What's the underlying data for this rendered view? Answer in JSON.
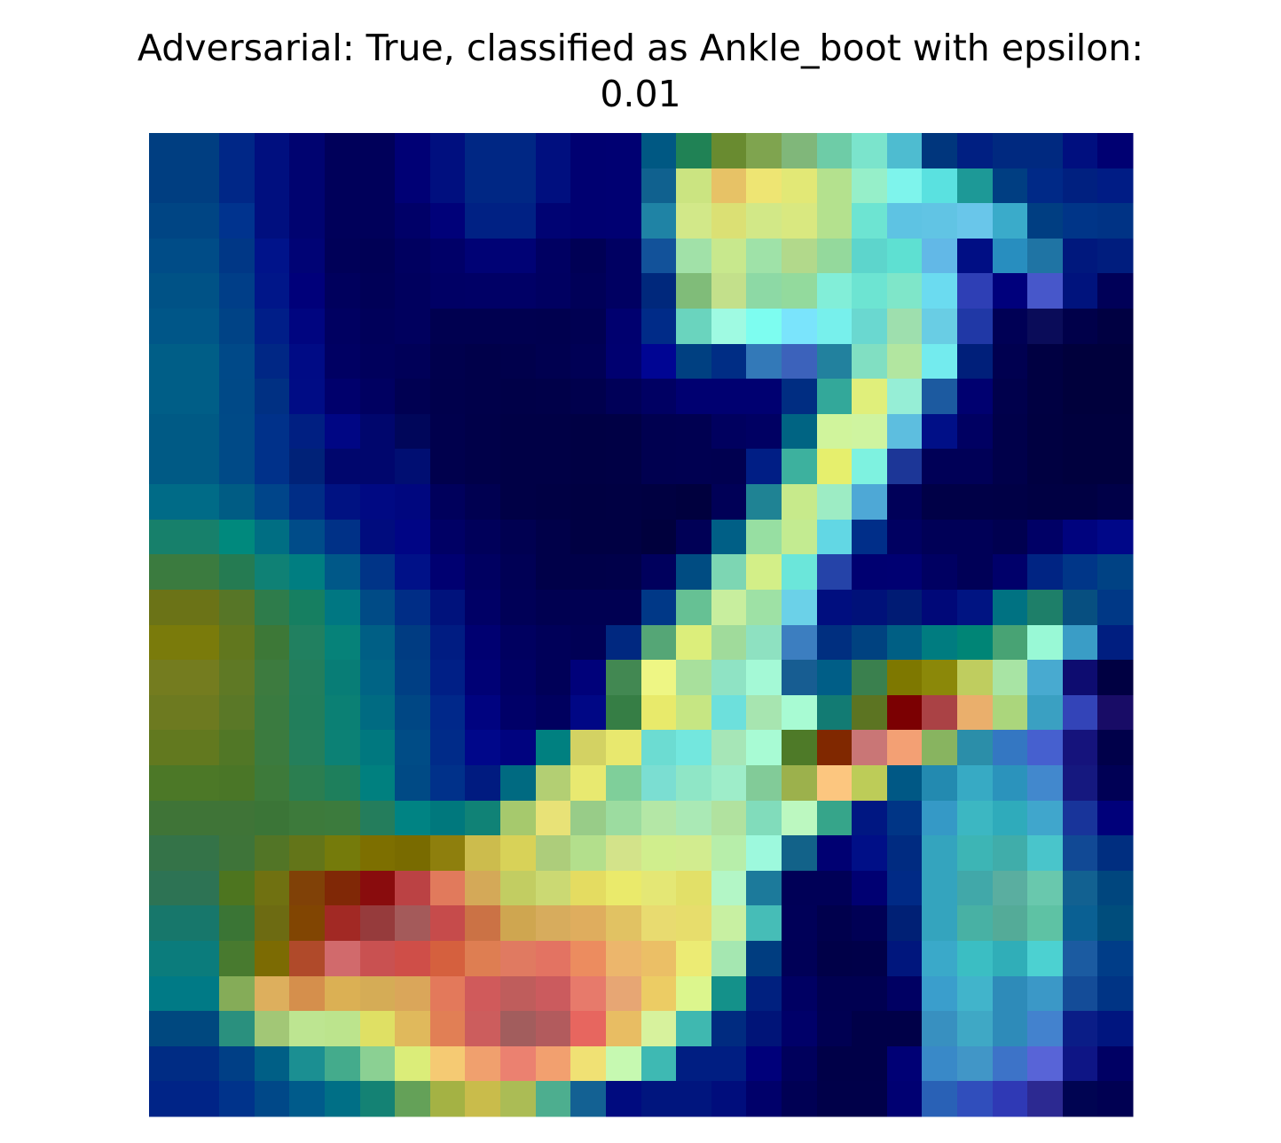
{
  "chart_data": {
    "type": "heatmap",
    "title": "Adversarial: True, classified as Ankle_boot with epsilon:\n0.01",
    "axes": "off",
    "grid": false,
    "rows": 28,
    "cols": 28,
    "cells": [
      [
        "#003e81",
        "#003e81",
        "#002787",
        "#000f7f",
        "#000370",
        "#00005a",
        "#00005a",
        "#000075",
        "#000f7f",
        "#002784",
        "#002784",
        "#000f7f",
        "#000071",
        "#000072",
        "#005883",
        "#208255",
        "#698b30",
        "#7fa44f",
        "#80b77a",
        "#6ecca7",
        "#7be4cc",
        "#4ebcd0",
        "#00367d",
        "#001f82",
        "#002980",
        "#002980",
        "#000f7f",
        "#000072"
      ],
      [
        "#003e81",
        "#003e81",
        "#002787",
        "#000f7f",
        "#000370",
        "#00005a",
        "#00005a",
        "#000075",
        "#000f7f",
        "#002784",
        "#002784",
        "#000f7f",
        "#000071",
        "#000072",
        "#10618f",
        "#cbe481",
        "#e7c266",
        "#eee573",
        "#e2e876",
        "#b4e18e",
        "#96efc9",
        "#7ef4ec",
        "#5ae1e0",
        "#1d9997",
        "#003e82",
        "#002987",
        "#002080",
        "#001c85"
      ],
      [
        "#004584",
        "#004584",
        "#00338e",
        "#000f7f",
        "#000370",
        "#00005a",
        "#00005a",
        "#000068",
        "#000179",
        "#002184",
        "#002184",
        "#000373",
        "#000071",
        "#000072",
        "#1f83a5",
        "#d2e889",
        "#dbe074",
        "#d2e887",
        "#d9e880",
        "#b4e18e",
        "#6de4d2",
        "#5ec3e3",
        "#61c4e4",
        "#69c6ea",
        "#3aabca",
        "#003e82",
        "#003588",
        "#003385"
      ],
      [
        "#004c87",
        "#004c87",
        "#003786",
        "#00138a",
        "#000375",
        "#000058",
        "#000055",
        "#000060",
        "#000068",
        "#000275",
        "#000275",
        "#000062",
        "#000055",
        "#000062",
        "#12529a",
        "#a1e1a8",
        "#c8e88d",
        "#9fe2a8",
        "#b2d98b",
        "#94d99c",
        "#5dd5cc",
        "#5ee0d2",
        "#62b8e7",
        "#000e84",
        "#288ebf",
        "#1f74a4",
        "#00187d",
        "#001d7e"
      ],
      [
        "#005286",
        "#005286",
        "#003e88",
        "#001689",
        "#00007a",
        "#00005d",
        "#000057",
        "#00005e",
        "#000065",
        "#000066",
        "#000066",
        "#000061",
        "#000058",
        "#000062",
        "#00287c",
        "#80bc79",
        "#c3e08b",
        "#8dd9a5",
        "#93da9d",
        "#82eed8",
        "#6de4d2",
        "#7fe6c9",
        "#6bdbf0",
        "#2e3fb5",
        "#00007c",
        "#4757ca",
        "#00137d",
        "#000058"
      ],
      [
        "#005688",
        "#005688",
        "#004386",
        "#001e88",
        "#000580",
        "#000061",
        "#00005a",
        "#00005e",
        "#000050",
        "#000050",
        "#000050",
        "#00004f",
        "#000052",
        "#00006f",
        "#002b88",
        "#6ad4be",
        "#9ffae2",
        "#7dfdf0",
        "#7ae4fc",
        "#77f0ec",
        "#6ad8d0",
        "#9edfae",
        "#69cde4",
        "#2038a6",
        "#000055",
        "#0a0c59",
        "#00004a",
        "#000042"
      ],
      [
        "#005e87",
        "#005e87",
        "#004988",
        "#002785",
        "#000b85",
        "#000063",
        "#00005c",
        "#000058",
        "#00004d",
        "#00004a",
        "#00004c",
        "#000050",
        "#000055",
        "#000070",
        "#000593",
        "#004081",
        "#002d85",
        "#3379b8",
        "#3c62bb",
        "#22819e",
        "#81dfc2",
        "#b2e6a0",
        "#73ebee",
        "#001f7a",
        "#000050",
        "#000042",
        "#00003c",
        "#00003c"
      ],
      [
        "#005e87",
        "#005e87",
        "#004987",
        "#003083",
        "#000c85",
        "#00006c",
        "#000061",
        "#000052",
        "#00004c",
        "#00004a",
        "#000048",
        "#000049",
        "#00004d",
        "#000058",
        "#000063",
        "#000071",
        "#000071",
        "#000071",
        "#002d82",
        "#33a89a",
        "#e0ef7b",
        "#96eed6",
        "#1c5aa0",
        "#000070",
        "#00004c",
        "#000042",
        "#00003c",
        "#00003c"
      ],
      [
        "#005a85",
        "#005a85",
        "#004a87",
        "#00318a",
        "#001f82",
        "#000684",
        "#00066d",
        "#00065a",
        "#00004d",
        "#000049",
        "#000046",
        "#000046",
        "#000044",
        "#000045",
        "#000050",
        "#000051",
        "#00005f",
        "#000063",
        "#006483",
        "#d0f49c",
        "#cff4a0",
        "#5dbedf",
        "#000f87",
        "#000062",
        "#00004a",
        "#000041",
        "#00003e",
        "#00003e"
      ],
      [
        "#005a85",
        "#005a85",
        "#004a87",
        "#00318a",
        "#002278",
        "#00066d",
        "#00066d",
        "#000e72",
        "#00004d",
        "#000049",
        "#000046",
        "#000046",
        "#000044",
        "#000045",
        "#000050",
        "#000051",
        "#000050",
        "#001e85",
        "#3db19e",
        "#e6ef6d",
        "#7ef2e0",
        "#1c3697",
        "#000057",
        "#000057",
        "#00004a",
        "#000041",
        "#00003e",
        "#00003e"
      ],
      [
        "#006b87",
        "#006b87",
        "#005c84",
        "#00458a",
        "#002d86",
        "#001282",
        "#000983",
        "#00077f",
        "#00005c",
        "#000051",
        "#000046",
        "#000044",
        "#000042",
        "#000043",
        "#000041",
        "#00003e",
        "#000057",
        "#1f8394",
        "#c7ea8b",
        "#9decc4",
        "#4ea8d6",
        "#000059",
        "#000047",
        "#000047",
        "#000046",
        "#000043",
        "#000043",
        "#000048"
      ],
      [
        "#17806b",
        "#17806b",
        "#00897d",
        "#006e83",
        "#004c89",
        "#003187",
        "#000c7e",
        "#000585",
        "#000065",
        "#00005a",
        "#000051",
        "#000049",
        "#000043",
        "#000043",
        "#00003d",
        "#000056",
        "#005f86",
        "#97dfa2",
        "#c3eb91",
        "#62d7e4",
        "#002e89",
        "#000061",
        "#000057",
        "#000057",
        "#000050",
        "#000066",
        "#00037e",
        "#000788"
      ],
      [
        "#3b7b3f",
        "#3b7b3f",
        "#257b52",
        "#0f8175",
        "#007e81",
        "#005888",
        "#003487",
        "#001188",
        "#000071",
        "#000061",
        "#000055",
        "#000049",
        "#000049",
        "#00004a",
        "#00005d",
        "#004c82",
        "#7dd6b3",
        "#d3ef88",
        "#6be6da",
        "#2543a8",
        "#000071",
        "#000072",
        "#000062",
        "#000057",
        "#00006a",
        "#002483",
        "#003688",
        "#004284"
      ],
      [
        "#6b7317",
        "#6b7317",
        "#577627",
        "#2e7c4b",
        "#167f61",
        "#007782",
        "#004b86",
        "#002d86",
        "#00127c",
        "#000066",
        "#000057",
        "#000051",
        "#000052",
        "#000052",
        "#003887",
        "#66c194",
        "#c8ee9e",
        "#9ee1a5",
        "#6bd1e8",
        "#000e7f",
        "#001179",
        "#001b74",
        "#000878",
        "#001482",
        "#007282",
        "#1e7f69",
        "#074f80",
        "#003886"
      ],
      [
        "#7a7b0b",
        "#7a7b0b",
        "#61771e",
        "#3d7837",
        "#218060",
        "#068279",
        "#005f85",
        "#003c82",
        "#001c82",
        "#000071",
        "#000060",
        "#000059",
        "#000055",
        "#002880",
        "#55a676",
        "#dcee7b",
        "#a0db9b",
        "#8ee1c1",
        "#3c7ec0",
        "#002f80",
        "#004280",
        "#005f84",
        "#007c80",
        "#008576",
        "#48a374",
        "#99f9d6",
        "#3a9dc6",
        "#001e80"
      ],
      [
        "#747c1f",
        "#747c1f",
        "#5f7925",
        "#3d7b3f",
        "#237e5c",
        "#087d76",
        "#006485",
        "#003f84",
        "#001f86",
        "#000175",
        "#000064",
        "#000058",
        "#00017a",
        "#428852",
        "#eef684",
        "#a8e09c",
        "#8fe3c4",
        "#a4f9d6",
        "#175d92",
        "#005e87",
        "#3a804e",
        "#7e7800",
        "#8b8809",
        "#bfcd5f",
        "#a8e4a4",
        "#48aad0",
        "#0d0c70",
        "#000042"
      ],
      [
        "#6d7a20",
        "#6d7a20",
        "#5a7827",
        "#3a7b40",
        "#227e5b",
        "#0b8074",
        "#006b82",
        "#004784",
        "#00288a",
        "#000380",
        "#000068",
        "#00005f",
        "#000785",
        "#367e45",
        "#e8ea6b",
        "#c6e683",
        "#6de0dc",
        "#a7e5b0",
        "#a8fbd3",
        "#127b73",
        "#5c7422",
        "#7b0002",
        "#aa4245",
        "#eaaf6c",
        "#abd67c",
        "#3aa0c2",
        "#3344b8",
        "#180c66"
      ],
      [
        "#62791f",
        "#62791f",
        "#517726",
        "#3b7b3f",
        "#247f5b",
        "#0c8175",
        "#00787f",
        "#004c86",
        "#002b89",
        "#00078a",
        "#00037f",
        "#008080",
        "#d3d263",
        "#e8e86e",
        "#6cdcd2",
        "#73e7de",
        "#a6e6b7",
        "#a8fbd4",
        "#4e7a28",
        "#802800",
        "#c97676",
        "#f3a074",
        "#88b460",
        "#2b8ea9",
        "#3477c2",
        "#4660cf",
        "#15137c",
        "#00004a"
      ],
      [
        "#4c7827",
        "#4c7827",
        "#4a7627",
        "#3d7a3a",
        "#2b7e50",
        "#1e7f5c",
        "#00807f",
        "#004a85",
        "#00318a",
        "#001b80",
        "#006a81",
        "#b3cf73",
        "#e8e970",
        "#7fcf9a",
        "#7bded2",
        "#8fe6c6",
        "#9eedc9",
        "#82cb98",
        "#9cb14c",
        "#fcc67f",
        "#bdcc58",
        "#005885",
        "#238ab0",
        "#37aac4",
        "#2b93bc",
        "#4288cd",
        "#15187f",
        "#000055"
      ],
      [
        "#3f7437",
        "#3f7437",
        "#3f7437",
        "#3b7537",
        "#3d7a3b",
        "#3c7b3d",
        "#247d5c",
        "#008383",
        "#00787d",
        "#108276",
        "#a6c96d",
        "#e8e277",
        "#98cc88",
        "#9cdca0",
        "#b4e7a6",
        "#aae9b5",
        "#b1e29f",
        "#81dcbb",
        "#bcf8c0",
        "#36a58a",
        "#001782",
        "#003586",
        "#3599c6",
        "#3cb7c2",
        "#2fabbb",
        "#40a6cc",
        "#18349a",
        "#00007a"
      ],
      [
        "#347348",
        "#347348",
        "#3e7439",
        "#527526",
        "#637519",
        "#757b0b",
        "#7d6f00",
        "#796b00",
        "#8e7f0d",
        "#ccbc4d",
        "#d8d258",
        "#adcd7b",
        "#b3df8c",
        "#d3e38a",
        "#d0ee8d",
        "#d2ec8f",
        "#b7eeaa",
        "#9df9dd",
        "#126289",
        "#000072",
        "#000f87",
        "#002b81",
        "#34a4be",
        "#3db5b5",
        "#40adaa",
        "#49c5cb",
        "#114995",
        "#002e80"
      ],
      [
        "#2d7354",
        "#2d7354",
        "#4d751f",
        "#707111",
        "#804107",
        "#802806",
        "#890c0d",
        "#bb4244",
        "#e17a5c",
        "#d4a958",
        "#c2cd62",
        "#cbd973",
        "#e4dc61",
        "#eaea6b",
        "#e4e775",
        "#e2e068",
        "#b3f6c6",
        "#1c7a9b",
        "#000057",
        "#000057",
        "#000072",
        "#002a86",
        "#34a4be",
        "#41a8a9",
        "#5aaea0",
        "#69c8ad",
        "#126191",
        "#00467e"
      ],
      [
        "#17776b",
        "#17776b",
        "#3a7535",
        "#6d6b12",
        "#814502",
        "#a22924",
        "#963b3c",
        "#a45a5a",
        "#c64b4b",
        "#cb7245",
        "#cfa650",
        "#d7ac5d",
        "#dfad5e",
        "#e1c263",
        "#e8db70",
        "#e7dd6c",
        "#c8f0a2",
        "#46bdb7",
        "#000058",
        "#00004d",
        "#000055",
        "#002075",
        "#34a4be",
        "#48b1a4",
        "#54ab98",
        "#5ec2a4",
        "#0a6093",
        "#004d7c"
      ],
      [
        "#0b7c7c",
        "#0b7c7c",
        "#487a2f",
        "#7c6b03",
        "#b04a2a",
        "#d16a6c",
        "#c95151",
        "#cf4e48",
        "#d5603e",
        "#de7e52",
        "#e07a61",
        "#e37362",
        "#ec8c5f",
        "#ecb66c",
        "#ebbf66",
        "#eceb74",
        "#a5e7b1",
        "#003d80",
        "#000057",
        "#000048",
        "#000049",
        "#00167d",
        "#3aa9c9",
        "#3bbec3",
        "#30aeb8",
        "#4cd1d1",
        "#1b5ba1",
        "#003d88"
      ],
      [
        "#007a86",
        "#007a86",
        "#85ac58",
        "#ddaf5d",
        "#d58f4c",
        "#dbb054",
        "#d5ac56",
        "#daa65a",
        "#e3795b",
        "#d05a5b",
        "#bf5d5c",
        "#cb5b5e",
        "#e77a6b",
        "#e7a674",
        "#eccc64",
        "#dcf68d",
        "#14918a",
        "#00207f",
        "#000063",
        "#000051",
        "#000051",
        "#000063",
        "#3a9ecc",
        "#41b4cb",
        "#2e8bb9",
        "#3b98c7",
        "#144c98",
        "#003485"
      ],
      [
        "#00487f",
        "#00487f",
        "#2a907e",
        "#a2c776",
        "#bde591",
        "#bce48d",
        "#dfe064",
        "#e0b95c",
        "#e17f55",
        "#cc5d5d",
        "#a25d5d",
        "#b25b5d",
        "#e7665f",
        "#e8bd63",
        "#d7f29d",
        "#3fb8b0",
        "#002b80",
        "#001478",
        "#000069",
        "#000052",
        "#000048",
        "#000048",
        "#3890c0",
        "#3fa8c5",
        "#2e8bb9",
        "#4382ce",
        "#0a1d87",
        "#00157f"
      ],
      [
        "#002c84",
        "#002c84",
        "#003f86",
        "#005f86",
        "#1b8f92",
        "#44ab8c",
        "#8bd093",
        "#dbed79",
        "#f5ca73",
        "#f0a06e",
        "#eb8170",
        "#f2a06f",
        "#f0e174",
        "#c6f9b1",
        "#3eb9b3",
        "#001e82",
        "#001e82",
        "#00007a",
        "#00005c",
        "#000048",
        "#000048",
        "#000075",
        "#3989c8",
        "#4196c7",
        "#3d73c8",
        "#5864d7",
        "#0e1585",
        "#000064"
      ],
      [
        "#002487",
        "#002487",
        "#00338b",
        "#004888",
        "#005b8b",
        "#006f86",
        "#148274",
        "#64a158",
        "#a4b244",
        "#c9bc4b",
        "#abbc55",
        "#4dae8f",
        "#136193",
        "#000b7f",
        "#00157e",
        "#00157e",
        "#000d7c",
        "#00006a",
        "#000054",
        "#000049",
        "#000049",
        "#000072",
        "#2961b6",
        "#304ebc",
        "#2f39b5",
        "#2c2991",
        "#000452",
        "#000052"
      ]
    ]
  }
}
